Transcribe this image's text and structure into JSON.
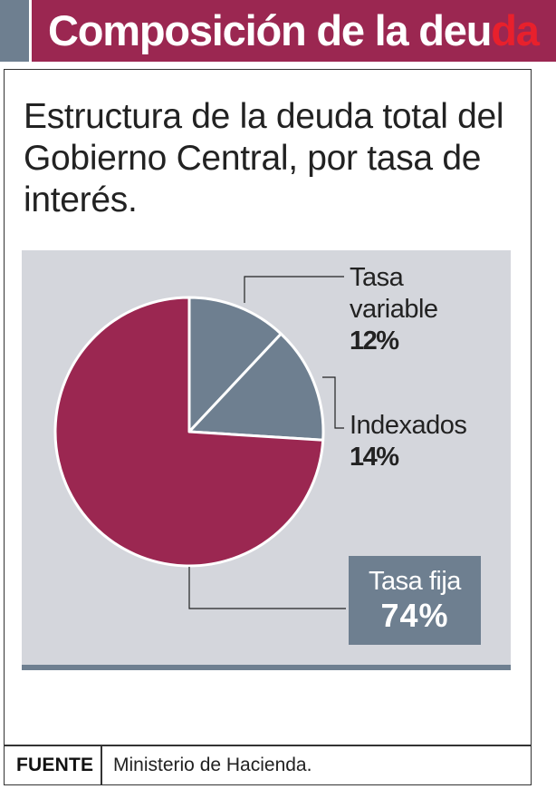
{
  "header": {
    "title_main": "Composición de la deu",
    "title_accent": "da"
  },
  "subtitle": "Estructura de la deuda total del Gobierno Central, por tasa de interés.",
  "chart_data": {
    "type": "pie",
    "slices": [
      {
        "label_line1": "Tasa",
        "label_line2": "variable",
        "value": 12,
        "display": "12%",
        "color": "#6e7f90"
      },
      {
        "label_line1": "Indexados",
        "label_line2": "",
        "value": 14,
        "display": "14%",
        "color": "#6e7f90"
      },
      {
        "label_line1": "Tasa fija",
        "label_line2": "",
        "value": 74,
        "display": "74%",
        "color": "#9b2751"
      }
    ],
    "colors": {
      "background": "#d4d6dc",
      "accent": "#9b2751",
      "neutral": "#6e7f90"
    }
  },
  "source": {
    "label": "FUENTE",
    "text": "Ministerio de Hacienda."
  }
}
